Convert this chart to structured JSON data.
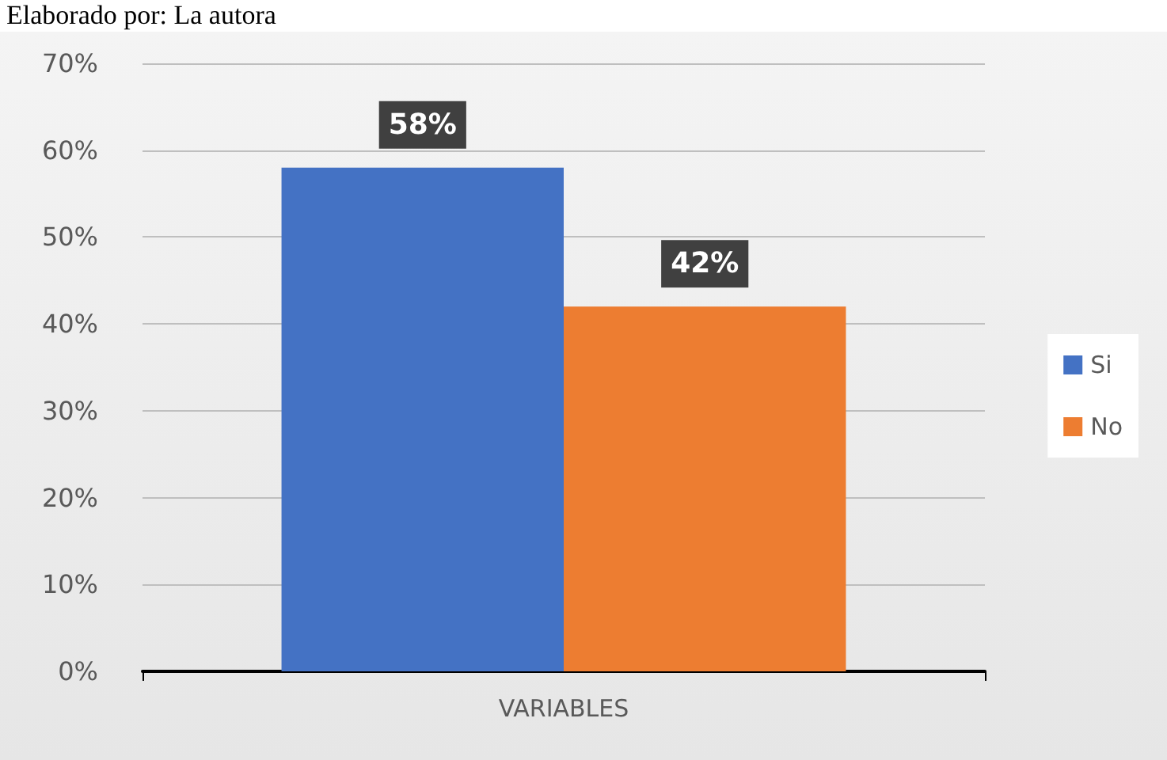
{
  "chart_data": {
    "type": "bar",
    "annotations": [
      "Elaborado por: La autora"
    ],
    "categories": [
      "VARIABLES"
    ],
    "series": [
      {
        "name": "Si",
        "color": "#4472c4",
        "values": [
          58
        ],
        "value_labels": [
          "58%"
        ]
      },
      {
        "name": "No",
        "color": "#ed7d31",
        "values": [
          42
        ],
        "value_labels": [
          "42%"
        ]
      }
    ],
    "ylim": [
      0,
      70
    ],
    "yticks": [
      {
        "value": 0,
        "label": "0%"
      },
      {
        "value": 10,
        "label": "10%"
      },
      {
        "value": 20,
        "label": "20%"
      },
      {
        "value": 30,
        "label": "30%"
      },
      {
        "value": 40,
        "label": "40%"
      },
      {
        "value": 50,
        "label": "50%"
      },
      {
        "value": 60,
        "label": "60%"
      },
      {
        "value": 70,
        "label": "70%"
      }
    ],
    "grid": "y",
    "legend": "right"
  }
}
